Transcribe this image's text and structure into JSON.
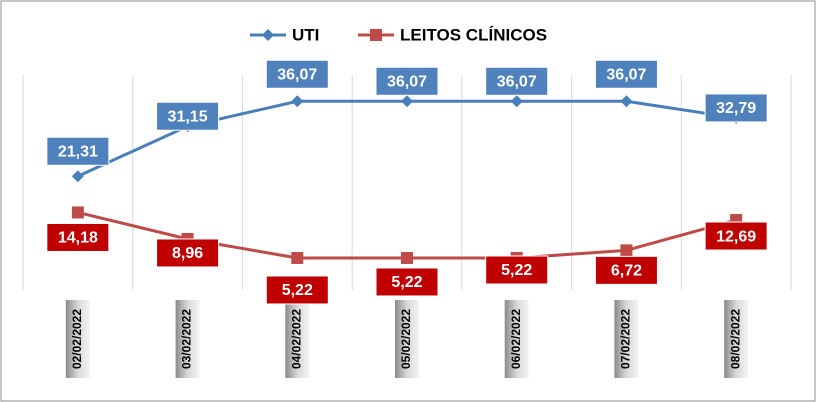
{
  "chart_data": {
    "type": "line",
    "categories": [
      "02/02/2022",
      "03/02/2022",
      "04/02/2022",
      "05/02/2022",
      "06/02/2022",
      "07/02/2022",
      "08/02/2022"
    ],
    "series": [
      {
        "name": "UTI",
        "color": "#4a7ebb",
        "marker": "diamond",
        "values": [
          21.31,
          31.15,
          36.07,
          36.07,
          36.07,
          36.07,
          32.79
        ],
        "value_labels": [
          "21,31",
          "31,15",
          "36,07",
          "36,07",
          "36,07",
          "36,07",
          "32,79"
        ]
      },
      {
        "name": "LEITOS CLÍNICOS",
        "color": "#be4b48",
        "marker": "square",
        "values": [
          14.18,
          8.96,
          5.22,
          5.22,
          5.22,
          6.72,
          12.69
        ],
        "value_labels": [
          "14,18",
          "8,96",
          "5,22",
          "5,22",
          "5,22",
          "6,72",
          "12,69"
        ]
      }
    ],
    "legend": "top"
  }
}
